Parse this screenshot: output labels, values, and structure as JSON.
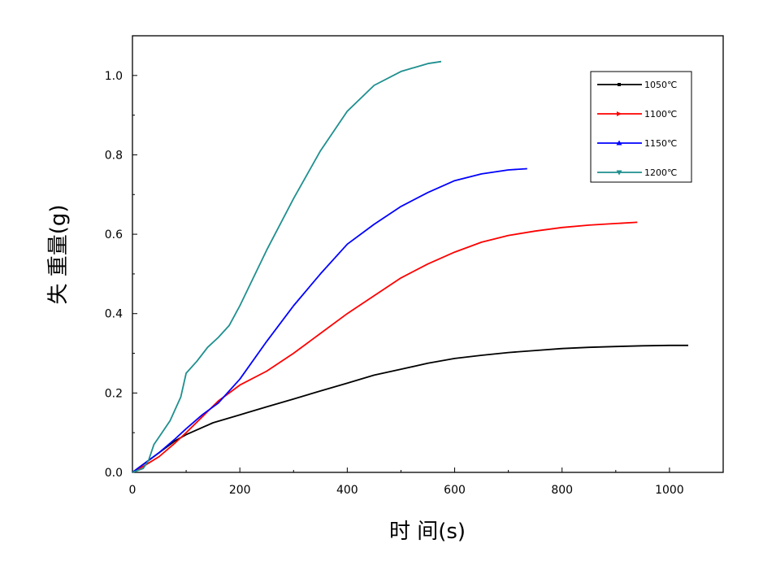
{
  "chart_data": {
    "type": "line",
    "xlabel": "时 间(s)",
    "ylabel": "失 重量(g)",
    "xlim": [
      0,
      1100
    ],
    "ylim": [
      0,
      1.1
    ],
    "xticks": [
      "0",
      "200",
      "400",
      "600",
      "800",
      "1000"
    ],
    "yticks": [
      "0.0",
      "0.2",
      "0.4",
      "0.6",
      "0.8",
      "1.0"
    ],
    "grid": false,
    "legend_position": "top-right",
    "series": [
      {
        "name": "1050℃",
        "color": "#000000",
        "x": [
          0,
          20,
          50,
          80,
          100,
          150,
          200,
          250,
          300,
          350,
          400,
          450,
          500,
          550,
          600,
          650,
          700,
          750,
          800,
          850,
          900,
          950,
          1000,
          1035
        ],
        "y": [
          0,
          0.02,
          0.05,
          0.08,
          0.095,
          0.125,
          0.145,
          0.165,
          0.185,
          0.205,
          0.225,
          0.245,
          0.26,
          0.275,
          0.287,
          0.295,
          0.302,
          0.307,
          0.312,
          0.315,
          0.317,
          0.319,
          0.32,
          0.32
        ]
      },
      {
        "name": "1100℃",
        "color": "#ff0000",
        "x": [
          0,
          20,
          50,
          80,
          100,
          130,
          160,
          180,
          200,
          250,
          300,
          350,
          400,
          450,
          500,
          550,
          600,
          650,
          700,
          750,
          800,
          850,
          900,
          940
        ],
        "y": [
          0,
          0.015,
          0.04,
          0.075,
          0.1,
          0.14,
          0.18,
          0.2,
          0.22,
          0.255,
          0.3,
          0.35,
          0.4,
          0.445,
          0.49,
          0.525,
          0.555,
          0.58,
          0.597,
          0.608,
          0.617,
          0.623,
          0.627,
          0.63
        ]
      },
      {
        "name": "1150℃",
        "color": "#0000ff",
        "x": [
          0,
          20,
          50,
          80,
          100,
          130,
          160,
          200,
          250,
          300,
          350,
          400,
          450,
          500,
          550,
          600,
          650,
          700,
          735
        ],
        "y": [
          0,
          0.02,
          0.05,
          0.085,
          0.11,
          0.145,
          0.175,
          0.235,
          0.33,
          0.42,
          0.5,
          0.575,
          0.625,
          0.67,
          0.705,
          0.735,
          0.752,
          0.762,
          0.765
        ]
      },
      {
        "name": "1200℃",
        "color": "#1f8f8f",
        "x": [
          0,
          20,
          30,
          40,
          50,
          70,
          90,
          100,
          120,
          140,
          160,
          180,
          200,
          250,
          300,
          350,
          400,
          450,
          500,
          550,
          575
        ],
        "y": [
          0,
          0.01,
          0.03,
          0.07,
          0.09,
          0.13,
          0.19,
          0.25,
          0.28,
          0.315,
          0.34,
          0.37,
          0.42,
          0.56,
          0.69,
          0.81,
          0.91,
          0.975,
          1.01,
          1.03,
          1.035
        ]
      }
    ]
  }
}
